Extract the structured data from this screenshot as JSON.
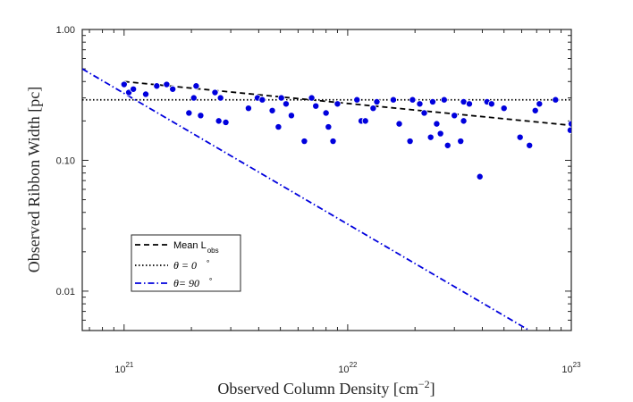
{
  "chart_data": {
    "type": "scatter",
    "title": "",
    "xlabel": "Observed Column Density [cm",
    "xlabel_exponent": "−2",
    "xlabel_close": "]",
    "ylabel": "Observed Ribbon Width [pc]",
    "xscale": "log",
    "yscale": "log",
    "xlim": [
      6.5e+20,
      1e+23
    ],
    "ylim": [
      0.005,
      1.0
    ],
    "x_ticks": [
      {
        "base": "10",
        "exp": "21",
        "value": 1e+21
      },
      {
        "base": "10",
        "exp": "22",
        "value": 1e+22
      },
      {
        "base": "10",
        "exp": "23",
        "value": 1e+23
      }
    ],
    "y_ticks": [
      {
        "label": "1.00",
        "value": 1.0
      },
      {
        "label": "0.10",
        "value": 0.1
      },
      {
        "label": "0.01",
        "value": 0.01
      }
    ],
    "grid": false,
    "legend_position": "bottom-left",
    "series": [
      {
        "name": "observations",
        "kind": "scatter",
        "color": "#0000dd",
        "x": [
          1e+21,
          1.05e+21,
          1.1e+21,
          1.25e+21,
          1.4e+21,
          1.55e+21,
          1.65e+21,
          1.95e+21,
          2.05e+21,
          2.1e+21,
          2.2e+21,
          2.55e+21,
          2.65e+21,
          2.7e+21,
          2.85e+21,
          3.6e+21,
          3.95e+21,
          4.15e+21,
          4.6e+21,
          4.9e+21,
          5.05e+21,
          5.3e+21,
          5.6e+21,
          6.4e+21,
          6.9e+21,
          7.2e+21,
          8e+21,
          8.2e+21,
          8.6e+21,
          9e+21,
          1.15e+22,
          1.2e+22,
          1.3e+22,
          1.35e+22,
          1.6e+22,
          1.7e+22,
          1.9e+22,
          2.1e+22,
          2.2e+22,
          2.35e+22,
          2.4e+22,
          2.6e+22,
          2.7e+22,
          2.8e+22,
          3e+22,
          3.2e+22,
          3.3e+22,
          3.5e+22,
          3.9e+22,
          4.2e+22,
          4.4e+22,
          5e+22,
          5.9e+22,
          6.5e+22,
          6.9e+22,
          7.2e+22,
          8.5e+22,
          9.9e+22,
          1e+23,
          1.1e+22,
          1.95e+22,
          2.5e+22,
          3.3e+22
        ],
        "y": [
          0.38,
          0.33,
          0.35,
          0.32,
          0.37,
          0.38,
          0.35,
          0.23,
          0.3,
          0.37,
          0.22,
          0.33,
          0.2,
          0.3,
          0.195,
          0.25,
          0.3,
          0.29,
          0.24,
          0.18,
          0.3,
          0.27,
          0.22,
          0.14,
          0.3,
          0.26,
          0.23,
          0.18,
          0.14,
          0.27,
          0.2,
          0.2,
          0.25,
          0.28,
          0.29,
          0.19,
          0.14,
          0.27,
          0.23,
          0.15,
          0.28,
          0.16,
          0.29,
          0.13,
          0.22,
          0.14,
          0.28,
          0.27,
          0.075,
          0.28,
          0.27,
          0.25,
          0.15,
          0.13,
          0.24,
          0.27,
          0.29,
          0.17,
          0.19,
          0.29,
          0.29,
          0.19,
          0.2
        ]
      },
      {
        "name": "Mean L",
        "name_subscript": "obs",
        "kind": "line",
        "style": "dashed",
        "color": "#000000",
        "x": [
          1e+21,
          1e+23
        ],
        "y": [
          0.4,
          0.185
        ]
      },
      {
        "name": "θ = 0",
        "name_suffix": "∘",
        "kind": "line",
        "style": "dotted",
        "color": "#000000",
        "x": [
          6.5e+20,
          1e+23
        ],
        "y": [
          0.29,
          0.29
        ]
      },
      {
        "name": "θ= 90",
        "name_suffix": "∘",
        "kind": "line",
        "style": "dashdot",
        "color": "#0000dd",
        "x": [
          6.5e+20,
          6.5e+22
        ],
        "y": [
          0.5,
          0.005
        ]
      }
    ]
  }
}
